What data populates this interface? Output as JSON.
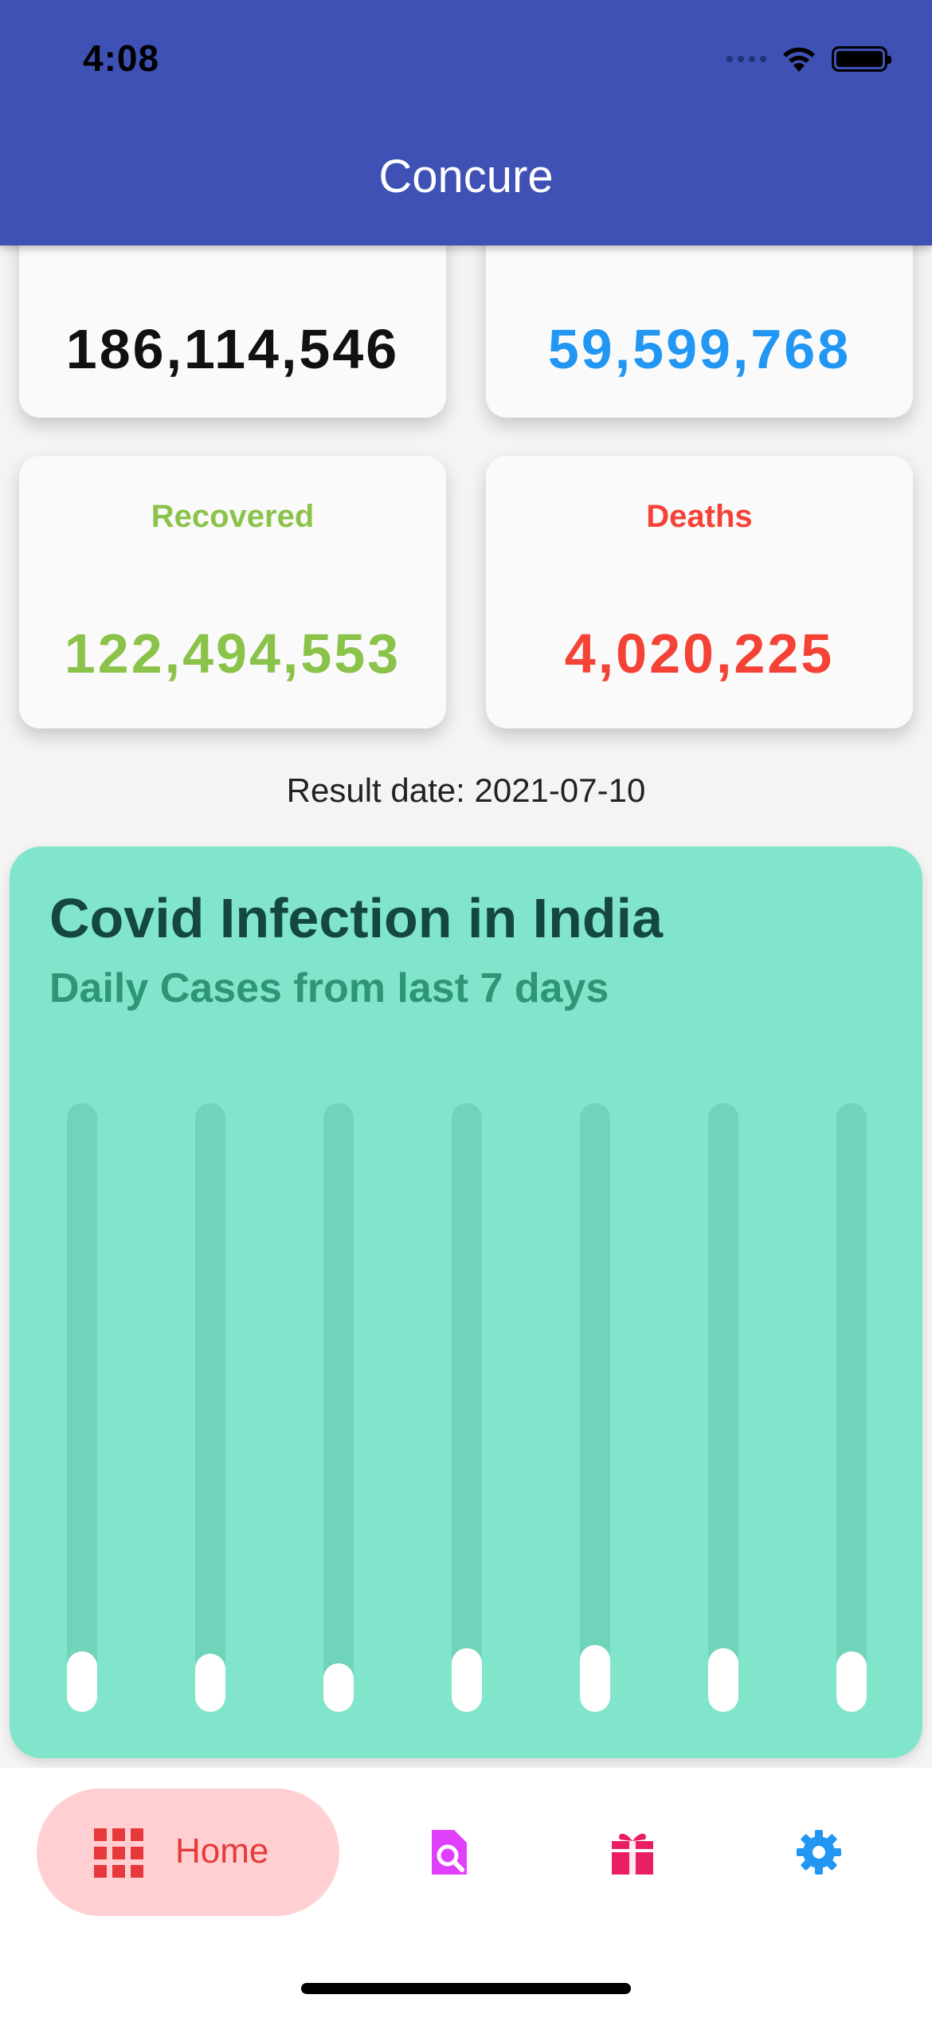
{
  "status_bar": {
    "time": "4:08"
  },
  "app_bar": {
    "title": "Concure"
  },
  "stats": {
    "total": {
      "value": "186,114,546",
      "color": "#111111"
    },
    "active": {
      "value": "59,599,768",
      "color": "#2196f3"
    },
    "recovered": {
      "label": "Recovered",
      "value": "122,494,553",
      "color": "#8bc34a"
    },
    "deaths": {
      "label": "Deaths",
      "value": "4,020,225",
      "color": "#f44336"
    }
  },
  "result_date": "Result date: 2021-07-10",
  "chart_panel": {
    "title": "Covid Infection in India",
    "subtitle": "Daily Cases from last 7 days"
  },
  "chart_data": {
    "type": "bar",
    "title": "Covid Infection in India",
    "subtitle": "Daily Cases from last 7 days",
    "categories": [
      "",
      "",
      "",
      "",
      "",
      "",
      ""
    ],
    "values": [
      0.1,
      0.095,
      0.08,
      0.105,
      0.11,
      0.105,
      0.1
    ],
    "ylim": [
      0,
      1
    ],
    "bar_color": "#ffffff",
    "track_color": "#70d4bb",
    "background_color": "#81e5cb",
    "grid": false
  },
  "bottom_nav": {
    "home_label": "Home",
    "home_color": "#e63a3a",
    "items": [
      {
        "icon": "document-search-icon",
        "color": "#e040fb"
      },
      {
        "icon": "gift-icon",
        "color": "#e91e63"
      },
      {
        "icon": "gear-icon",
        "color": "#2196f3"
      }
    ]
  }
}
